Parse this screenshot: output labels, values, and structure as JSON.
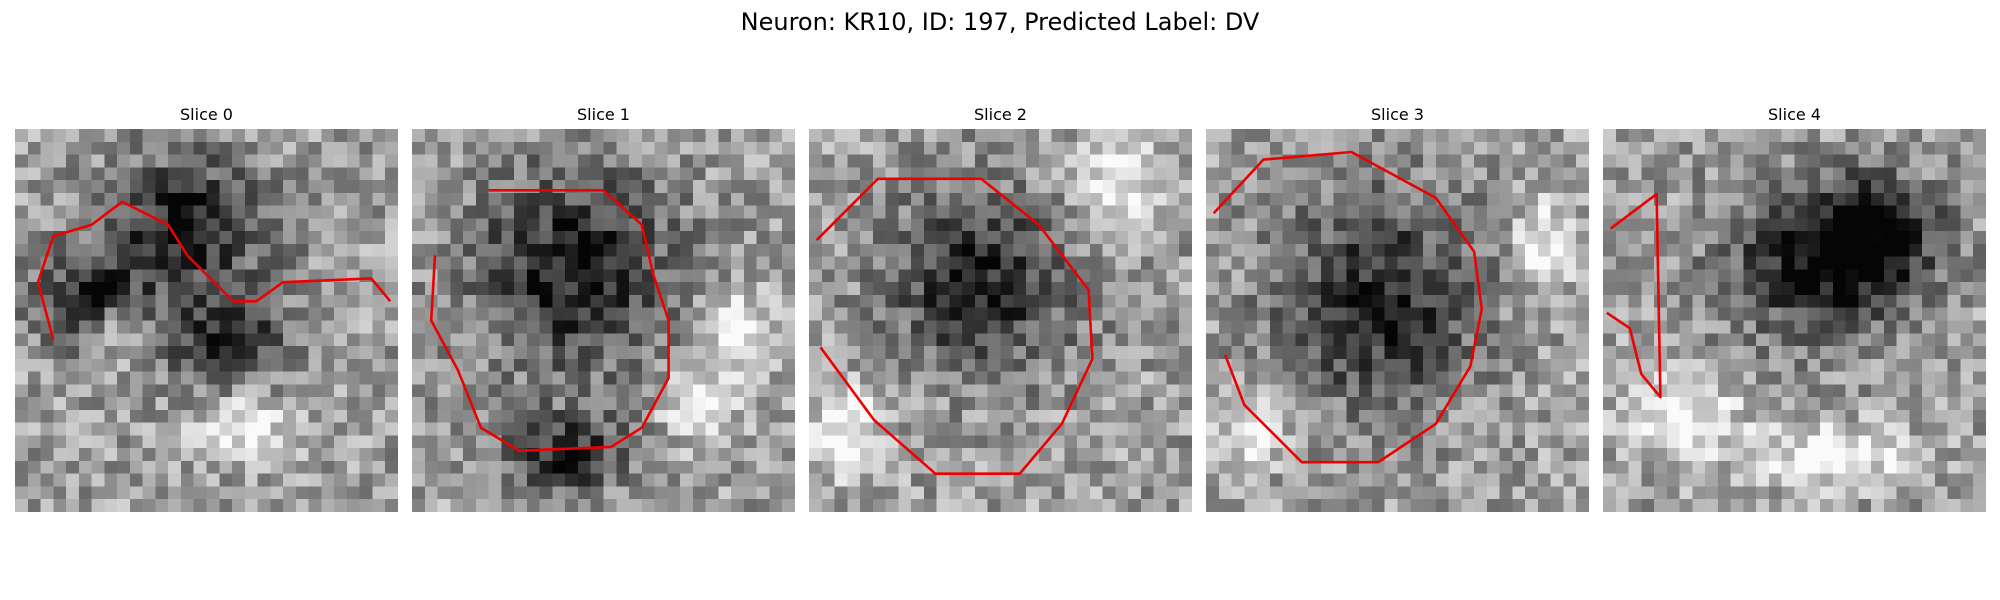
{
  "figure": {
    "title": "Neuron: KR10, ID: 197, Predicted Label: DV"
  },
  "panels": [
    {
      "title": "Slice 0",
      "dark_blobs": [
        [
          0.45,
          0.25,
          0.28,
          0.22
        ],
        [
          0.2,
          0.45,
          0.18,
          0.15
        ],
        [
          0.55,
          0.55,
          0.2,
          0.15
        ]
      ],
      "bright_blobs": [
        [
          0.28,
          0.52,
          0.1,
          0.1
        ],
        [
          0.6,
          0.78,
          0.15,
          0.1
        ]
      ],
      "contour": [
        [
          0.1,
          0.55
        ],
        [
          0.06,
          0.4
        ],
        [
          0.1,
          0.28
        ],
        [
          0.2,
          0.25
        ],
        [
          0.28,
          0.19
        ],
        [
          0.4,
          0.25
        ],
        [
          0.45,
          0.33
        ],
        [
          0.57,
          0.45
        ],
        [
          0.63,
          0.45
        ],
        [
          0.7,
          0.4
        ],
        [
          0.93,
          0.39
        ],
        [
          0.98,
          0.45
        ]
      ]
    },
    {
      "title": "Slice 1",
      "dark_blobs": [
        [
          0.42,
          0.37,
          0.33,
          0.33
        ],
        [
          0.4,
          0.85,
          0.2,
          0.12
        ]
      ],
      "bright_blobs": [
        [
          0.75,
          0.72,
          0.12,
          0.12
        ],
        [
          0.85,
          0.52,
          0.1,
          0.12
        ]
      ],
      "contour": [
        [
          0.2,
          0.16
        ],
        [
          0.5,
          0.16
        ],
        [
          0.6,
          0.25
        ],
        [
          0.63,
          0.38
        ],
        [
          0.67,
          0.5
        ],
        [
          0.67,
          0.65
        ],
        [
          0.6,
          0.78
        ],
        [
          0.52,
          0.83
        ],
        [
          0.28,
          0.84
        ],
        [
          0.18,
          0.78
        ],
        [
          0.12,
          0.63
        ],
        [
          0.05,
          0.5
        ],
        [
          0.06,
          0.33
        ]
      ]
    },
    {
      "title": "Slice 2",
      "dark_blobs": [
        [
          0.45,
          0.4,
          0.3,
          0.28
        ]
      ],
      "bright_blobs": [
        [
          0.8,
          0.15,
          0.15,
          0.15
        ],
        [
          0.1,
          0.78,
          0.12,
          0.15
        ]
      ],
      "contour": [
        [
          0.02,
          0.29
        ],
        [
          0.18,
          0.13
        ],
        [
          0.45,
          0.13
        ],
        [
          0.6,
          0.25
        ],
        [
          0.73,
          0.42
        ],
        [
          0.74,
          0.6
        ],
        [
          0.66,
          0.77
        ],
        [
          0.55,
          0.9
        ],
        [
          0.33,
          0.9
        ],
        [
          0.17,
          0.76
        ],
        [
          0.03,
          0.57
        ]
      ]
    },
    {
      "title": "Slice 3",
      "dark_blobs": [
        [
          0.45,
          0.45,
          0.32,
          0.33
        ]
      ],
      "bright_blobs": [
        [
          0.12,
          0.78,
          0.12,
          0.12
        ],
        [
          0.88,
          0.3,
          0.1,
          0.15
        ]
      ],
      "contour": [
        [
          0.02,
          0.22
        ],
        [
          0.15,
          0.08
        ],
        [
          0.38,
          0.06
        ],
        [
          0.6,
          0.18
        ],
        [
          0.7,
          0.32
        ],
        [
          0.72,
          0.47
        ],
        [
          0.69,
          0.62
        ],
        [
          0.6,
          0.77
        ],
        [
          0.45,
          0.87
        ],
        [
          0.25,
          0.87
        ],
        [
          0.1,
          0.72
        ],
        [
          0.05,
          0.59
        ]
      ]
    },
    {
      "title": "Slice 4",
      "dark_blobs": [
        [
          0.55,
          0.35,
          0.3,
          0.25
        ],
        [
          0.72,
          0.28,
          0.2,
          0.18
        ]
      ],
      "bright_blobs": [
        [
          0.2,
          0.75,
          0.2,
          0.15
        ],
        [
          0.6,
          0.85,
          0.25,
          0.1
        ]
      ],
      "contour": [
        [
          0.02,
          0.26
        ],
        [
          0.14,
          0.17
        ],
        [
          0.15,
          0.7
        ],
        [
          0.1,
          0.64
        ],
        [
          0.07,
          0.52
        ],
        [
          0.01,
          0.48
        ]
      ]
    }
  ]
}
